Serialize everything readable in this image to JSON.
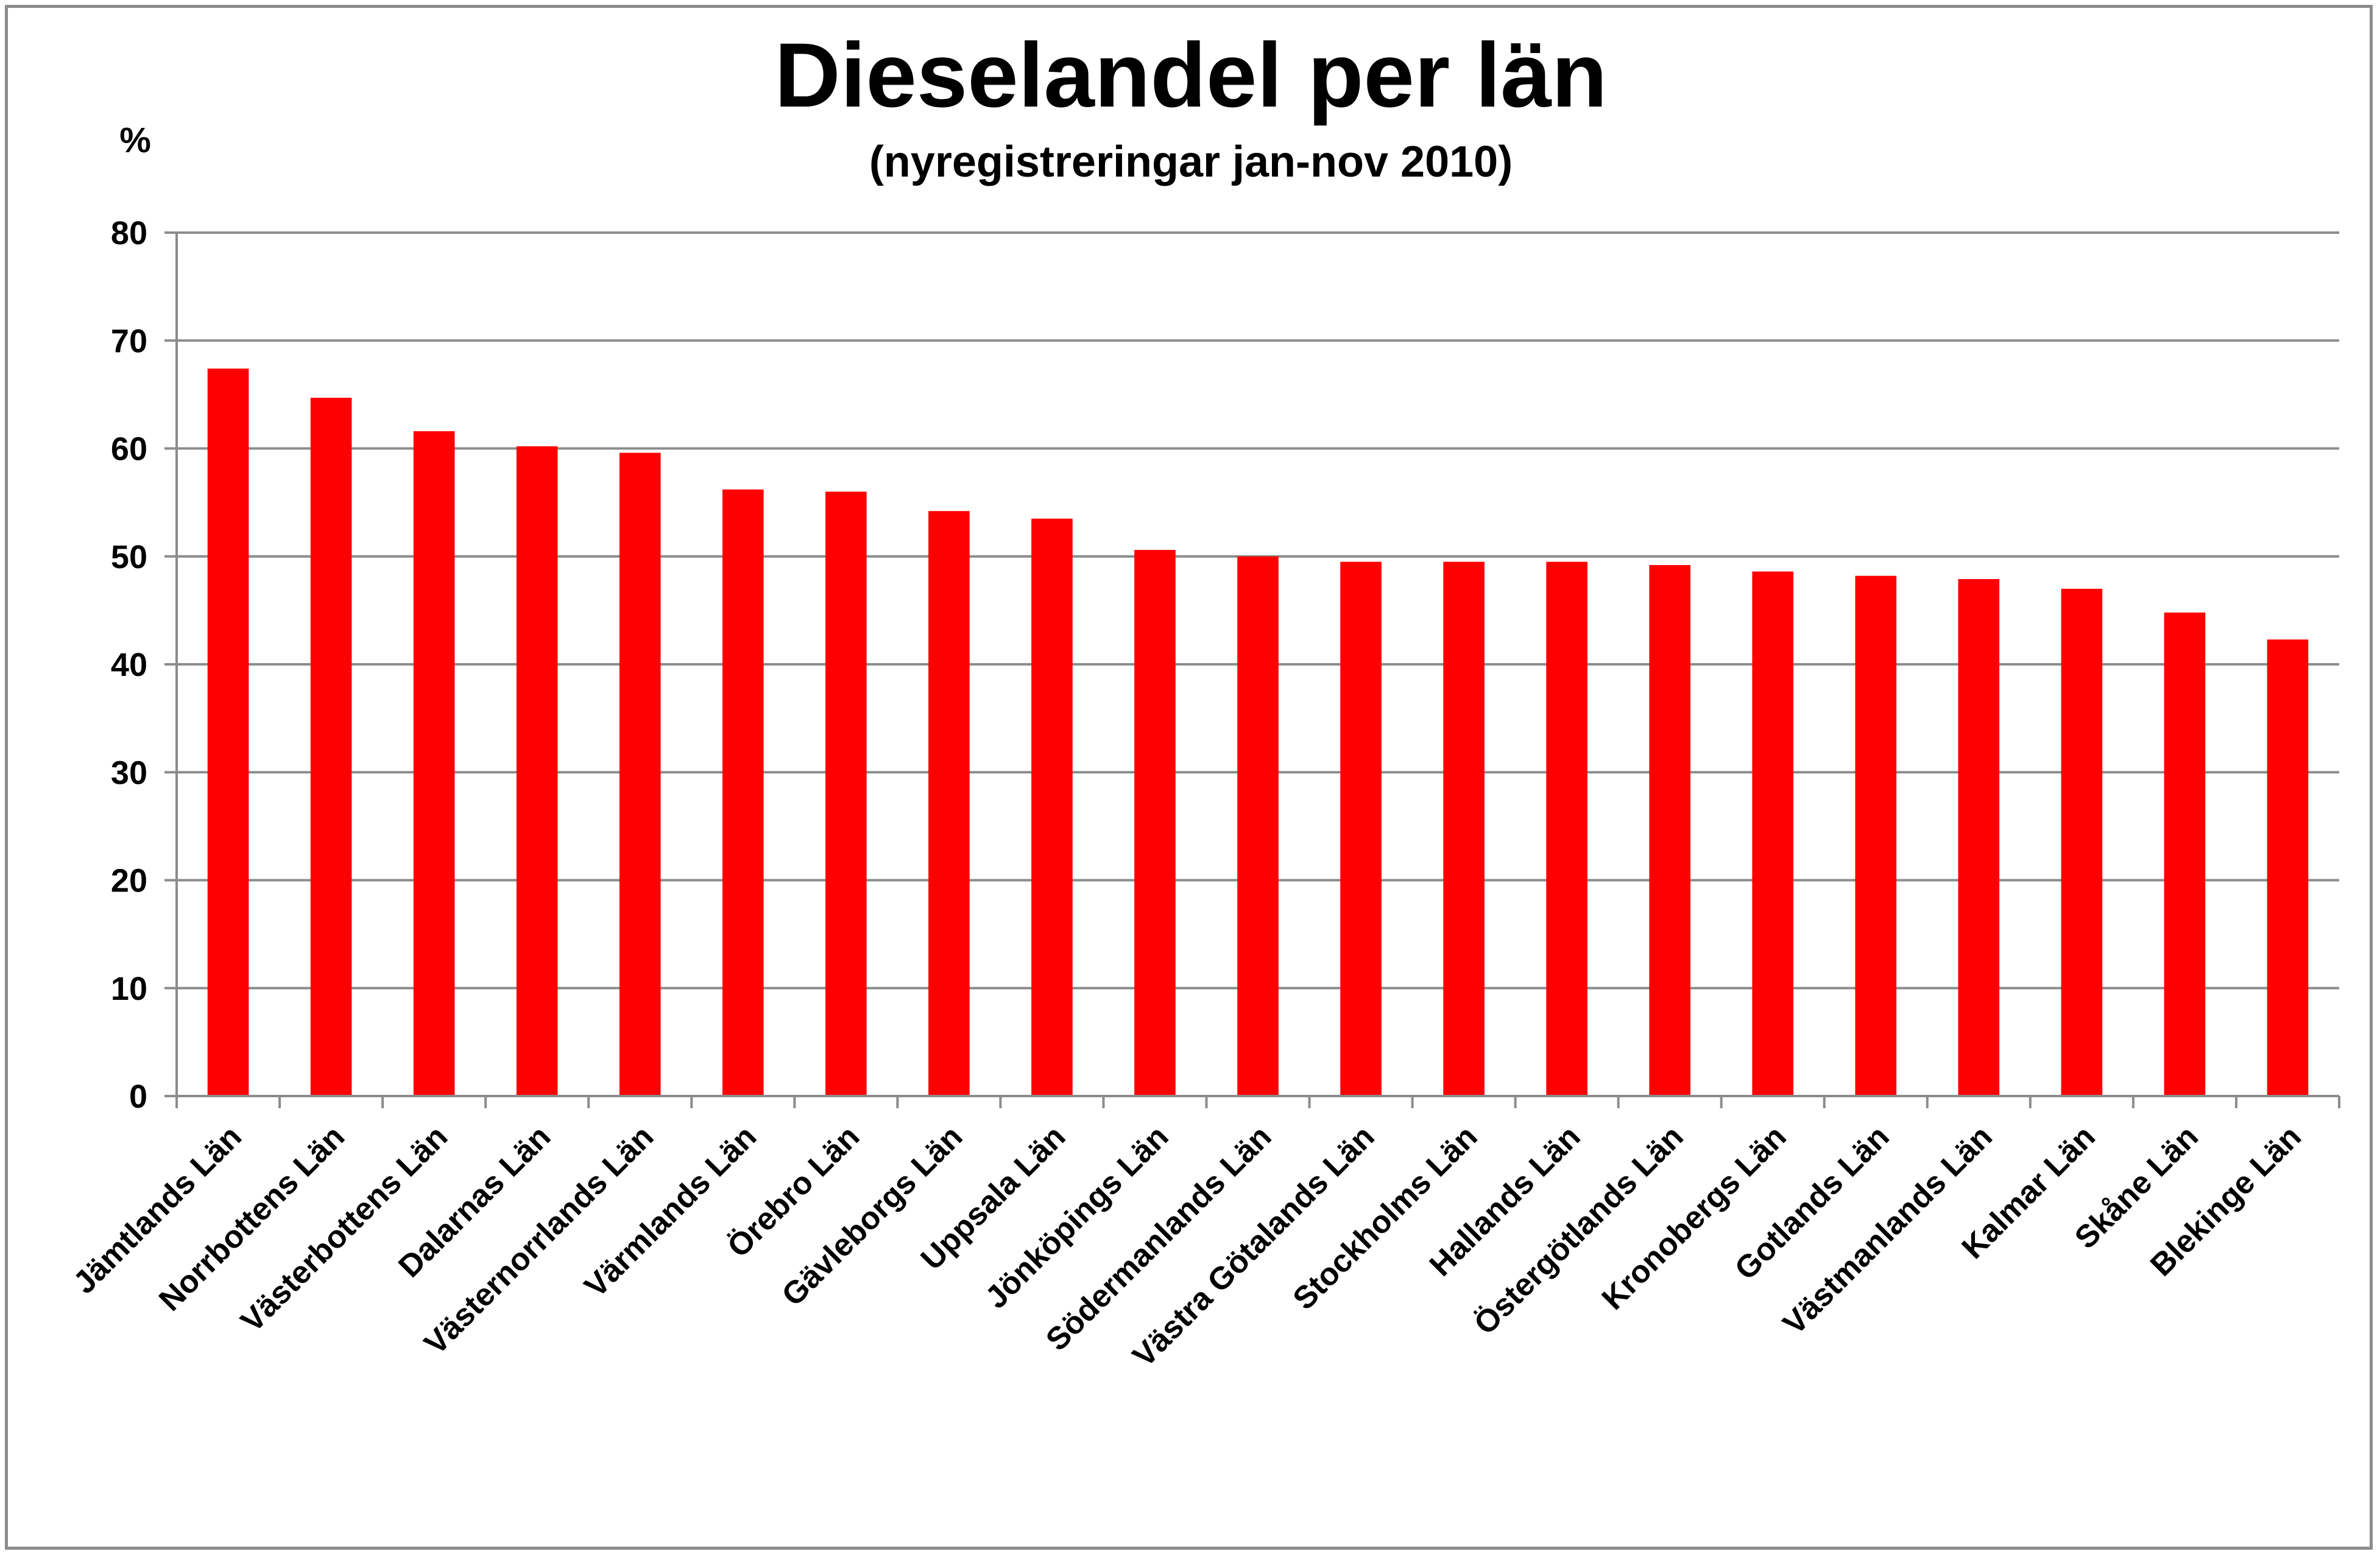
{
  "chart_data": {
    "type": "bar",
    "title": "Dieselandel per län",
    "subtitle": "(nyregistreringar jan-nov 2010)",
    "ylabel": "%",
    "xlabel": "",
    "ylim": [
      0,
      80
    ],
    "yticks": [
      0,
      10,
      20,
      30,
      40,
      50,
      60,
      70,
      80
    ],
    "grid": true,
    "legend": "none",
    "bar_color": "#ff0000",
    "categories": [
      "Jämtlands Län",
      "Norrbottens Län",
      "Västerbottens Län",
      "Dalarnas Län",
      "Västernorrlands Län",
      "Värmlands Län",
      "Örebro Län",
      "Gävleborgs Län",
      "Uppsala Län",
      "Jönköpings Län",
      "Södermanlands Län",
      "Västra Götalands Län",
      "Stockholms Län",
      "Hallands Län",
      "Östergötlands Län",
      "Kronobergs Län",
      "Gotlands Län",
      "Västmanlands Län",
      "Kalmar Län",
      "Skåne Län",
      "Blekinge Län"
    ],
    "values": [
      67.4,
      64.7,
      61.6,
      60.2,
      59.6,
      56.2,
      56.0,
      54.2,
      53.5,
      50.6,
      50.0,
      49.5,
      49.5,
      49.5,
      49.2,
      48.6,
      48.2,
      47.9,
      47.0,
      44.8,
      42.3
    ]
  }
}
